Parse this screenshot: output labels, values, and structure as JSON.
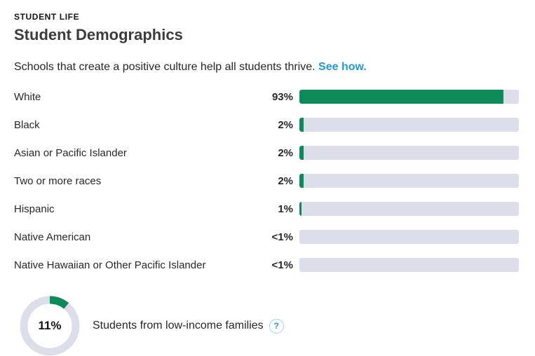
{
  "header": {
    "eyebrow": "STUDENT LIFE",
    "title": "Student Demographics"
  },
  "intro": {
    "text": "Schools that create a positive culture help all students thrive.",
    "link_label": "See how."
  },
  "colors": {
    "bar_fill": "#0d8a57",
    "bar_track": "#dcdfea",
    "link_blue": "#1d9bd8",
    "text_dark": "#26272c"
  },
  "chart_data": [
    {
      "type": "bar",
      "orientation": "horizontal",
      "title": "Student Demographics",
      "categories": [
        "White",
        "Black",
        "Asian or Pacific Islander",
        "Two or more races",
        "Hispanic",
        "Native American",
        "Native Hawaiian or Other Pacific Islander"
      ],
      "values": [
        93,
        2,
        2,
        2,
        1,
        0,
        0
      ],
      "value_labels": [
        "93%",
        "2%",
        "2%",
        "2%",
        "1%",
        "<1%",
        "<1%"
      ],
      "xlim": [
        0,
        100
      ],
      "grid": false,
      "legend": "none"
    },
    {
      "type": "pie",
      "style": "donut",
      "label": "Students from low-income families",
      "value": 11,
      "value_label": "11%"
    }
  ],
  "low_income": {
    "percent_label": "11%",
    "percent_value": 11,
    "label": "Students from low-income families",
    "help_glyph": "?"
  }
}
